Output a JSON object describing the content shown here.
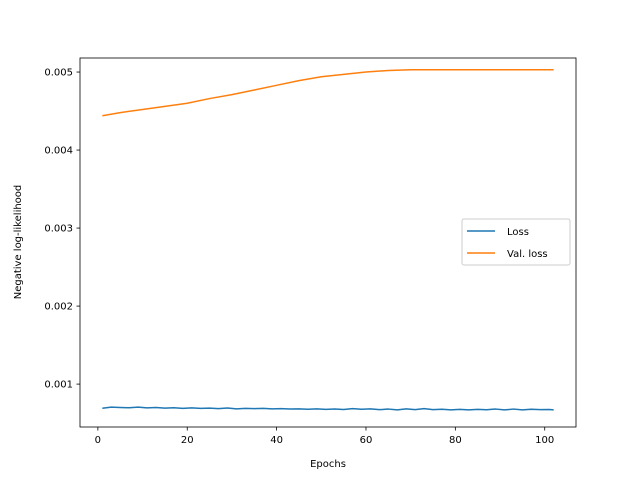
{
  "chart_data": {
    "type": "line",
    "title": "",
    "xlabel": "Epochs",
    "ylabel": "Negative log-likelihood",
    "xlim": [
      -4,
      107
    ],
    "ylim": [
      0.00045,
      0.00518
    ],
    "xticks": [
      0,
      20,
      40,
      60,
      80,
      100
    ],
    "xtick_labels": [
      "0",
      "20",
      "40",
      "60",
      "80",
      "100"
    ],
    "yticks": [
      0.001,
      0.002,
      0.003,
      0.004,
      0.005
    ],
    "ytick_labels": [
      "0.001",
      "0.002",
      "0.003",
      "0.004",
      "0.005"
    ],
    "grid": false,
    "legend_position": "center-right",
    "series": [
      {
        "name": "Loss",
        "color": "#1f77b4",
        "x": [
          1,
          3,
          5,
          7,
          9,
          11,
          13,
          15,
          17,
          19,
          21,
          23,
          25,
          27,
          29,
          31,
          33,
          35,
          37,
          39,
          41,
          43,
          45,
          47,
          49,
          51,
          53,
          55,
          57,
          59,
          61,
          63,
          65,
          67,
          69,
          71,
          73,
          75,
          77,
          79,
          81,
          83,
          85,
          87,
          89,
          91,
          93,
          95,
          97,
          99,
          101,
          102
        ],
        "y": [
          0.00069,
          0.000705,
          0.0007,
          0.000697,
          0.000705,
          0.000695,
          0.0007,
          0.000692,
          0.000697,
          0.000688,
          0.000695,
          0.000688,
          0.000692,
          0.000685,
          0.000693,
          0.000683,
          0.000688,
          0.000686,
          0.000688,
          0.000683,
          0.000685,
          0.00068,
          0.000682,
          0.000678,
          0.000683,
          0.000676,
          0.00068,
          0.000675,
          0.000685,
          0.000678,
          0.000683,
          0.000672,
          0.00068,
          0.00067,
          0.000682,
          0.000672,
          0.000686,
          0.000673,
          0.000677,
          0.00067,
          0.000676,
          0.00067,
          0.000676,
          0.000671,
          0.00068,
          0.000669,
          0.00068,
          0.000669,
          0.000678,
          0.000672,
          0.000675,
          0.00067
        ]
      },
      {
        "name": "Val. loss",
        "color": "#ff7f0e",
        "x": [
          1,
          5,
          10,
          15,
          20,
          25,
          30,
          35,
          40,
          45,
          50,
          55,
          60,
          65,
          70,
          75,
          80,
          85,
          90,
          95,
          100,
          102
        ],
        "y": [
          0.00444,
          0.00448,
          0.00452,
          0.00456,
          0.0046,
          0.00466,
          0.00471,
          0.00477,
          0.00483,
          0.00489,
          0.00494,
          0.00497,
          0.005,
          0.00502,
          0.00503,
          0.00503,
          0.00503,
          0.00503,
          0.00503,
          0.00503,
          0.00503,
          0.00503
        ]
      }
    ]
  }
}
